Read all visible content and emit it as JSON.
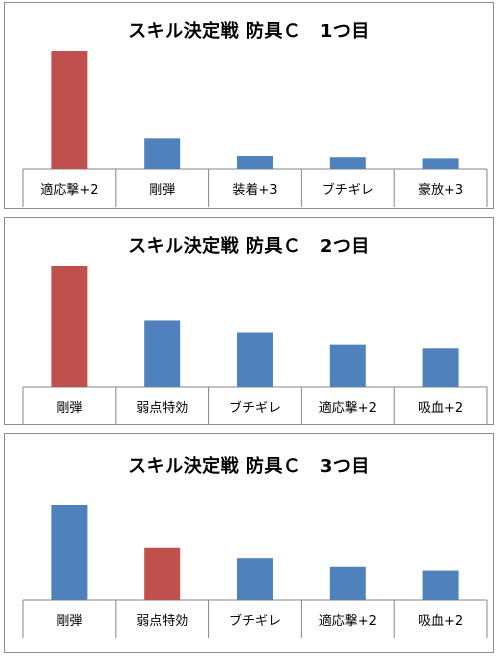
{
  "colors": {
    "bar": "#4f81bd",
    "highlight": "#c0504d",
    "axis": "#868686"
  },
  "chart_data": [
    {
      "type": "bar",
      "title": "スキル決定戦 防具Ｃ　1つ目",
      "categories": [
        "適応撃+2",
        "剛弾",
        "装着+3",
        "ブチギレ",
        "豪放+3"
      ],
      "values": [
        100,
        26,
        11,
        10,
        9
      ],
      "highlight_index": 0,
      "ylim": [
        0,
        100
      ]
    },
    {
      "type": "bar",
      "title": "スキル決定戦 防具Ｃ　2つ目",
      "categories": [
        "剛弾",
        "弱点特効",
        "ブチギレ",
        "適応撃+2",
        "吸血+2"
      ],
      "values": [
        100,
        55,
        45,
        35,
        32
      ],
      "highlight_index": 0,
      "ylim": [
        0,
        100
      ]
    },
    {
      "type": "bar",
      "title": "スキル決定戦 防具Ｃ　3つ目",
      "categories": [
        "剛弾",
        "弱点特効",
        "ブチギレ",
        "適応撃+2",
        "吸血+2"
      ],
      "values": [
        100,
        55,
        44,
        35,
        31
      ],
      "highlight_index": 1,
      "ylim": [
        0,
        100
      ]
    }
  ]
}
